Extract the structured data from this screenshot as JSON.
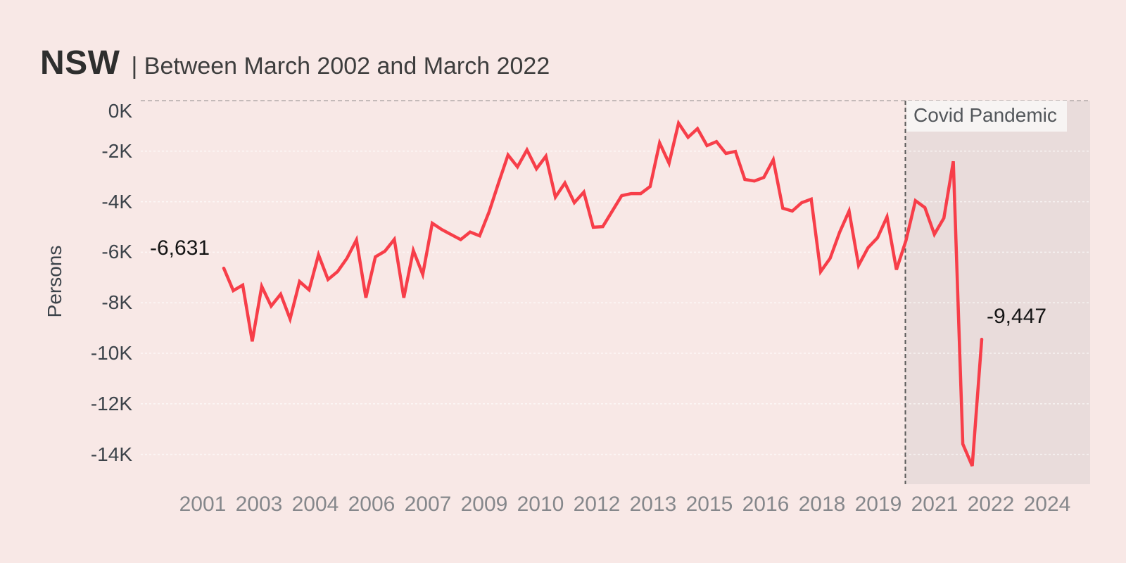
{
  "title": {
    "region": "NSW",
    "subtitle": "| Between March 2002 and March 2022"
  },
  "y_axis": {
    "label": "Persons",
    "ticks": [
      "0K",
      "-2K",
      "-4K",
      "-6K",
      "-8K",
      "-10K",
      "-12K",
      "-14K"
    ]
  },
  "x_axis": {
    "ticks": [
      "2001",
      "2003",
      "2004",
      "2006",
      "2007",
      "2009",
      "2010",
      "2012",
      "2013",
      "2015",
      "2016",
      "2018",
      "2019",
      "2021",
      "2022",
      "2024"
    ]
  },
  "annotations": {
    "start_value": "-6,631",
    "end_value": "-9,447",
    "covid_region_label": "Covid Pandemic"
  },
  "colors": {
    "background": "#f8e8e6",
    "line": "#f73e49",
    "covid_region_fill": "#e9dcdb",
    "covid_label_bg": "#f7f4f3",
    "covid_line": "#5a5a5a",
    "top_border_dash": "#b3aaaa",
    "gridline": "rgba(255,255,255,0.65)",
    "y_tick_text": "#3c434a",
    "x_tick_text": "#85878b",
    "annotation_text": "#141414"
  },
  "chart_data": {
    "type": "line",
    "title": "NSW | Between March 2002 and March 2022",
    "xlabel": "",
    "ylabel": "Persons",
    "ylim": [
      -15200,
      0
    ],
    "grid": "horizontal-dotted",
    "legend": "none",
    "y_tick_values": [
      0,
      -2000,
      -4000,
      -6000,
      -8000,
      -10000,
      -12000,
      -14000
    ],
    "x_tick_years": [
      2001,
      2003,
      2004,
      2006,
      2007,
      2009,
      2010,
      2012,
      2013,
      2015,
      2016,
      2018,
      2019,
      2021,
      2022,
      2024
    ],
    "shaded_region": {
      "label": "Covid Pandemic",
      "x_start": "2020-03",
      "x_end": "end-of-axis"
    },
    "point_annotations": [
      {
        "text": "-6,631",
        "point": "first"
      },
      {
        "text": "-9,447",
        "point": "last"
      }
    ],
    "series": [
      {
        "name": "persons",
        "frequency": "quarterly",
        "x_start": "2002-03",
        "x_end": "2022-03",
        "values": [
          -6631,
          -7520,
          -7300,
          -9530,
          -7350,
          -8130,
          -7660,
          -8640,
          -7160,
          -7490,
          -6100,
          -7080,
          -6770,
          -6240,
          -5510,
          -7800,
          -6180,
          -5960,
          -5490,
          -7800,
          -5930,
          -6880,
          -4850,
          -5100,
          -5300,
          -5500,
          -5200,
          -5350,
          -4400,
          -3260,
          -2150,
          -2620,
          -1950,
          -2700,
          -2200,
          -3820,
          -3260,
          -4040,
          -3620,
          -5010,
          -4990,
          -4370,
          -3760,
          -3680,
          -3680,
          -3400,
          -1670,
          -2480,
          -890,
          -1450,
          -1110,
          -1780,
          -1620,
          -2090,
          -2010,
          -3120,
          -3180,
          -3040,
          -2340,
          -4260,
          -4370,
          -4040,
          -3900,
          -6770,
          -6240,
          -5210,
          -4370,
          -6520,
          -5820,
          -5430,
          -4600,
          -6690,
          -5540,
          -3960,
          -4230,
          -5290,
          -4650,
          -2400,
          -13590,
          -14460,
          -9447
        ]
      }
    ]
  }
}
